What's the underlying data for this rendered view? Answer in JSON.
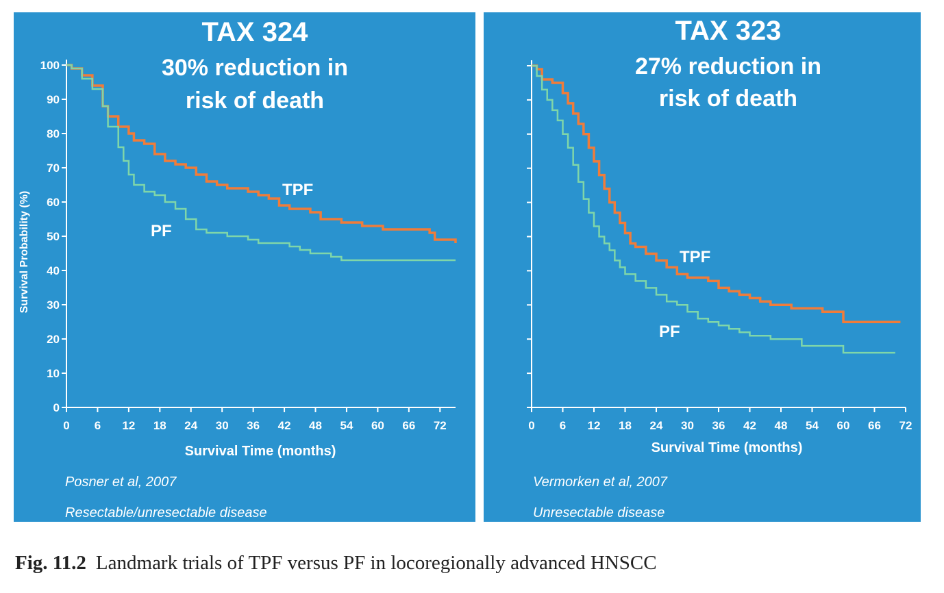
{
  "caption": {
    "label": "Fig. 11.2",
    "text": "Landmark trials of TPF versus PF in locoregionally advanced HNSCC"
  },
  "colors": {
    "background": "#2a93cf",
    "TPF": "#f07c3a",
    "PF": "#7fd6a9",
    "axis": "#ffffff"
  },
  "chart_data": [
    {
      "type": "line",
      "title": "TAX 324",
      "subtitle": [
        "30% reduction in",
        "risk of death"
      ],
      "xlabel": "Survival Time (months)",
      "ylabel": "Survival Probability (%)",
      "xlim": [
        0,
        75
      ],
      "ylim": [
        0,
        100
      ],
      "xticks": [
        "0",
        "6",
        "12",
        "18",
        "24",
        "30",
        "36",
        "42",
        "48",
        "54",
        "60",
        "66",
        "72"
      ],
      "yticks": [
        "0",
        "10",
        "20",
        "30",
        "40",
        "50",
        "60",
        "70",
        "80",
        "90",
        "100"
      ],
      "notes": [
        "Posner et al, 2007",
        "Resectable/unresectable disease"
      ],
      "series": [
        {
          "name": "TPF",
          "x": [
            0,
            1,
            3,
            5,
            7,
            8,
            10,
            12,
            13,
            15,
            17,
            19,
            21,
            23,
            25,
            27,
            29,
            31,
            33,
            35,
            37,
            39,
            41,
            43,
            45,
            47,
            49,
            51,
            53,
            55,
            57,
            59,
            61,
            63,
            65,
            67,
            69,
            70,
            71,
            75
          ],
          "y": [
            100,
            99,
            97,
            94,
            88,
            85,
            82,
            80,
            78,
            77,
            74,
            72,
            71,
            70,
            68,
            66,
            65,
            64,
            64,
            63,
            62,
            61,
            59,
            58,
            58,
            57,
            55,
            55,
            54,
            54,
            53,
            53,
            52,
            52,
            52,
            52,
            52,
            51,
            49,
            48
          ]
        },
        {
          "name": "PF",
          "x": [
            0,
            1,
            3,
            5,
            7,
            8,
            10,
            11,
            12,
            13,
            15,
            17,
            19,
            21,
            23,
            25,
            27,
            29,
            31,
            33,
            35,
            37,
            39,
            41,
            43,
            45,
            47,
            49,
            51,
            53,
            55,
            57,
            59,
            61,
            63,
            65,
            67,
            69,
            71,
            75
          ],
          "y": [
            100,
            99,
            96,
            93,
            88,
            82,
            76,
            72,
            68,
            65,
            63,
            62,
            60,
            58,
            55,
            52,
            51,
            51,
            50,
            50,
            49,
            48,
            48,
            48,
            47,
            46,
            45,
            45,
            44,
            43,
            43,
            43,
            43,
            43,
            43,
            43,
            43,
            43,
            43,
            43
          ]
        }
      ]
    },
    {
      "type": "line",
      "title": "TAX 323",
      "subtitle": [
        "27% reduction in",
        "risk of death"
      ],
      "xlabel": "Survival Time (months)",
      "ylabel": "",
      "xlim": [
        0,
        72
      ],
      "ylim": [
        0,
        100
      ],
      "xticks": [
        "0",
        "6",
        "12",
        "18",
        "24",
        "30",
        "36",
        "42",
        "48",
        "54",
        "60",
        "66",
        "72"
      ],
      "notes": [
        "Vermorken et al, 2007",
        "Unresectable disease"
      ],
      "series": [
        {
          "name": "TPF",
          "x": [
            0,
            1,
            2,
            4,
            6,
            7,
            8,
            9,
            10,
            11,
            12,
            13,
            14,
            15,
            16,
            17,
            18,
            19,
            20,
            22,
            24,
            26,
            28,
            30,
            32,
            34,
            36,
            38,
            40,
            42,
            44,
            46,
            48,
            50,
            52,
            54,
            56,
            58,
            60,
            62,
            64,
            66,
            68,
            70,
            71
          ],
          "y": [
            100,
            99,
            96,
            95,
            92,
            89,
            86,
            83,
            80,
            76,
            72,
            68,
            64,
            60,
            57,
            54,
            51,
            48,
            47,
            45,
            43,
            41,
            39,
            38,
            38,
            37,
            35,
            34,
            33,
            32,
            31,
            30,
            30,
            29,
            29,
            29,
            28,
            28,
            25,
            25,
            25,
            25,
            25,
            25,
            25
          ]
        },
        {
          "name": "PF",
          "x": [
            0,
            1,
            2,
            3,
            4,
            5,
            6,
            7,
            8,
            9,
            10,
            11,
            12,
            13,
            14,
            15,
            16,
            17,
            18,
            20,
            22,
            24,
            26,
            28,
            30,
            32,
            34,
            36,
            38,
            40,
            42,
            44,
            46,
            48,
            50,
            52,
            54,
            56,
            58,
            60,
            62,
            64,
            66,
            68,
            70
          ],
          "y": [
            100,
            97,
            93,
            90,
            87,
            84,
            80,
            76,
            71,
            66,
            61,
            57,
            53,
            50,
            48,
            46,
            43,
            41,
            39,
            37,
            35,
            33,
            31,
            30,
            28,
            26,
            25,
            24,
            23,
            22,
            21,
            21,
            20,
            20,
            20,
            18,
            18,
            18,
            18,
            16,
            16,
            16,
            16,
            16,
            16
          ]
        }
      ]
    }
  ]
}
